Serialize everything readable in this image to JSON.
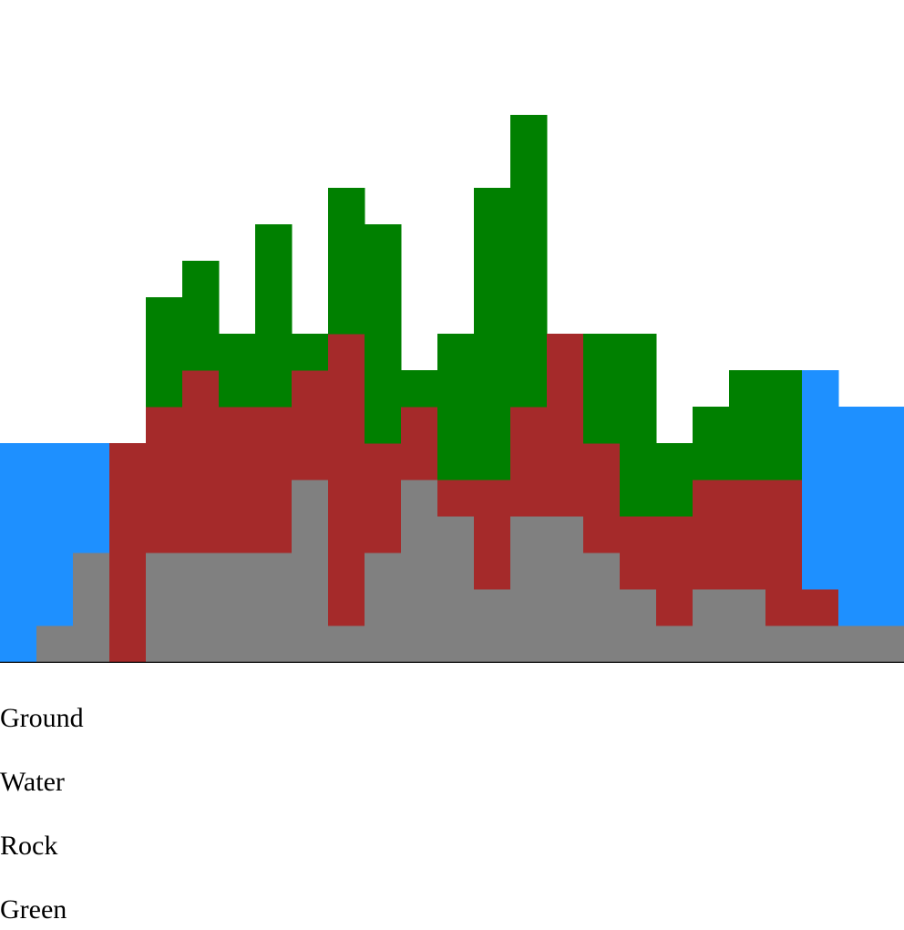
{
  "colors": {
    "ground": "#808080",
    "water": "#1E90FF",
    "rock": "#A52A2A",
    "green": "#008000",
    "baseline": "#000000"
  },
  "terrain": {
    "ground": [
      0,
      1,
      3,
      0,
      3,
      3,
      3,
      3,
      5,
      1,
      3,
      5,
      4,
      2,
      4,
      4,
      3,
      2,
      1,
      2,
      2,
      1,
      1,
      1,
      1
    ],
    "rock": [
      0,
      0,
      0,
      6,
      4,
      5,
      4,
      4,
      3,
      8,
      3,
      2,
      1,
      3,
      3,
      5,
      3,
      2,
      3,
      3,
      3,
      4,
      1,
      0,
      0
    ],
    "green": [
      0,
      0,
      0,
      0,
      3,
      3,
      2,
      5,
      1,
      4,
      6,
      1,
      4,
      8,
      8,
      0,
      3,
      5,
      2,
      2,
      3,
      3,
      0,
      0,
      0
    ],
    "water": [
      6,
      5,
      3,
      0,
      0,
      0,
      0,
      0,
      0,
      0,
      0,
      0,
      0,
      0,
      0,
      0,
      0,
      0,
      0,
      0,
      0,
      0,
      6,
      6,
      6
    ]
  },
  "legend": {
    "ground": "Ground",
    "water": "Water",
    "rock": "Rock",
    "green": "Green"
  }
}
